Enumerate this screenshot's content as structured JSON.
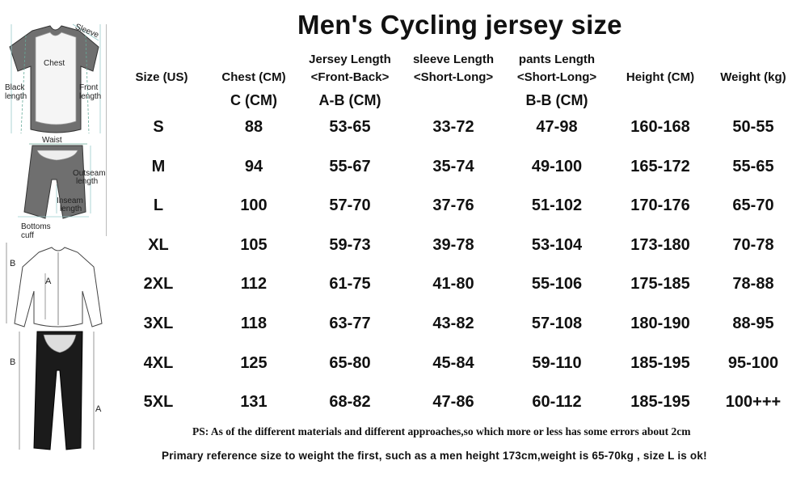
{
  "title": "Men's Cycling jersey size",
  "headers": {
    "size": "Size (US)",
    "chest": "Chest (CM)",
    "jersey_line1": "Jersey Length",
    "jersey_line2": "<Front-Back>",
    "sleeve_line1": "sleeve Length",
    "sleeve_line2": "<Short-Long>",
    "pants_line1": "pants Length",
    "pants_line2": "<Short-Long>",
    "height": "Height (CM)",
    "weight": "Weight (kg)"
  },
  "subheaders": {
    "chest": "C (CM)",
    "jersey": "A-B (CM)",
    "pants": "B-B (CM)"
  },
  "rows": [
    [
      "S",
      "88",
      "53-65",
      "33-72",
      "47-98",
      "160-168",
      "50-55"
    ],
    [
      "M",
      "94",
      "55-67",
      "35-74",
      "49-100",
      "165-172",
      "55-65"
    ],
    [
      "L",
      "100",
      "57-70",
      "37-76",
      "51-102",
      "170-176",
      "65-70"
    ],
    [
      "XL",
      "105",
      "59-73",
      "39-78",
      "53-104",
      "173-180",
      "70-78"
    ],
    [
      "2XL",
      "112",
      "61-75",
      "41-80",
      "55-106",
      "175-185",
      "78-88"
    ],
    [
      "3XL",
      "118",
      "63-77",
      "43-82",
      "57-108",
      "180-190",
      "88-95"
    ],
    [
      "4XL",
      "125",
      "65-80",
      "45-84",
      "59-110",
      "185-195",
      "95-100"
    ],
    [
      "5XL",
      "131",
      "68-82",
      "47-86",
      "60-112",
      "185-195",
      "100+++"
    ]
  ],
  "notes": {
    "ps": "PS: As of the different materials and different approaches,so which more or less has some errors about 2cm",
    "primary": "Primary reference size to weight the first,  such as a men height 173cm,weight is 65-70kg , size L is ok!"
  },
  "diagram_labels": {
    "sleeve": "Sleeve",
    "chest": "Chest",
    "back_length_1": "Black",
    "back_length_2": "length",
    "front_length_1": "Front",
    "front_length_2": "length",
    "waist": "Waist",
    "outseam_1": "Outseam",
    "outseam_2": "length",
    "inseam_1": "Inseam",
    "inseam_2": "length",
    "bottoms_1": "Bottoms",
    "bottoms_2": "cuff",
    "jersey_b": "B",
    "jersey_a": "A",
    "pants_b": "B",
    "pants_a": "A"
  }
}
